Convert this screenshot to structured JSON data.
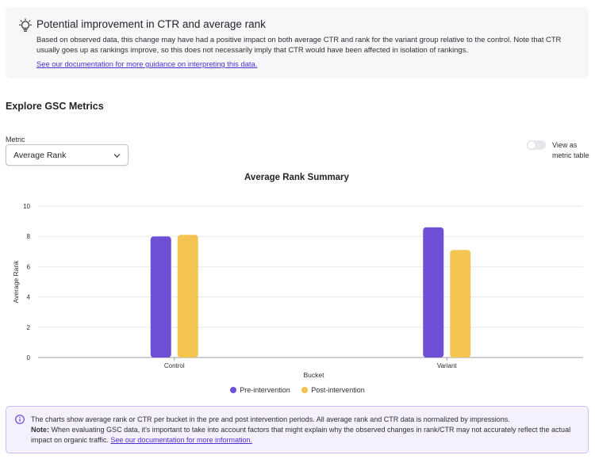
{
  "insight": {
    "icon": "lightbulb-icon",
    "title": "Potential improvement in CTR and average rank",
    "body": "Based on observed data, this change may have had a positive impact on both average CTR and rank for the variant group relative to the control. Note that CTR usually goes up as rankings improve, so this does not necessarily imply that CTR would have been affected in isolation of rankings.",
    "link": "See our documentation for more guidance on interpreting this data."
  },
  "explore": {
    "title": "Explore GSC Metrics",
    "metric_label": "Metric",
    "metric_value": "Average Rank",
    "toggle_label": "View as metric table",
    "toggle_on": false
  },
  "legend": {
    "pre": "Pre-intervention",
    "post": "Post-intervention"
  },
  "colors": {
    "pre": "#6e4fd6",
    "post": "#f4c451",
    "accent": "#4c2fd1"
  },
  "chart_data": {
    "type": "bar",
    "title": "Average Rank Summary",
    "xlabel": "Bucket",
    "ylabel": "Average Rank",
    "categories": [
      "Control",
      "Variant"
    ],
    "series": [
      {
        "name": "Pre-intervention",
        "values": [
          8.0,
          8.6
        ]
      },
      {
        "name": "Post-intervention",
        "values": [
          8.1,
          7.1
        ]
      }
    ],
    "ylim": [
      0,
      10
    ],
    "yticks": [
      "0",
      "2",
      "4",
      "6",
      "8",
      "10"
    ],
    "grid": true,
    "legend": "bottom"
  },
  "note": {
    "icon": "info-icon",
    "line1": "The charts show average rank or CTR per bucket in the pre and post intervention periods. All average rank and CTR data is normalized by impressions.",
    "note_label": "Note:",
    "line2": "When evaluating GSC data, it's important to take into account factors that might explain why the observed changes in rank/CTR may not accurately reflect the actual impact on organic traffic.",
    "link": "See our documentation for more information."
  }
}
